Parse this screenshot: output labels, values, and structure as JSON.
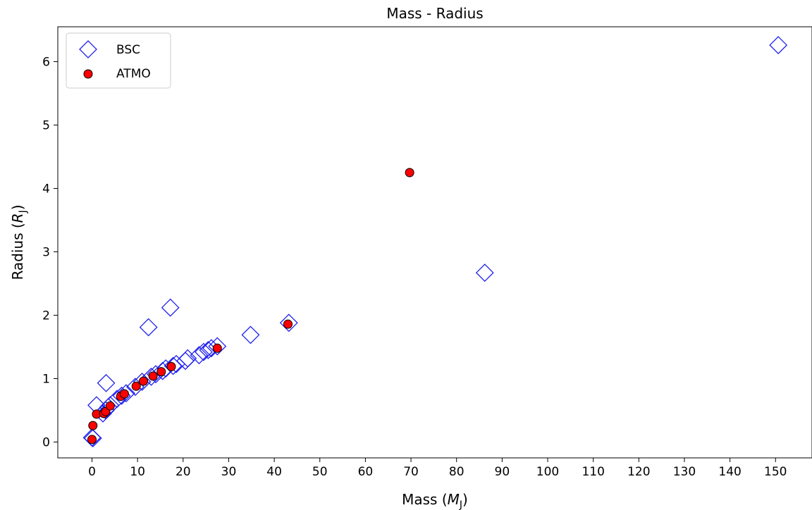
{
  "chart_data": {
    "type": "scatter",
    "title": "Mass - Radius",
    "xlabel": {
      "prefix": "Mass (",
      "symbol": "M",
      "sub": "J",
      "suffix": ")"
    },
    "ylabel": {
      "prefix": "Radius (",
      "symbol": "R",
      "sub": "J",
      "suffix": ")"
    },
    "xlim": [
      -7.5,
      158.0
    ],
    "ylim": [
      -0.25,
      6.55
    ],
    "xticks": [
      0,
      10,
      20,
      30,
      40,
      50,
      60,
      70,
      80,
      90,
      100,
      110,
      120,
      130,
      140,
      150
    ],
    "yticks": [
      0,
      1,
      2,
      3,
      4,
      5,
      6
    ],
    "grid": false,
    "legend_position": "top-left",
    "series": [
      {
        "name": "BSC",
        "marker": "diamond-open",
        "color": "#1f1fef",
        "points": [
          [
            0.0,
            0.07
          ],
          [
            0.2,
            0.06
          ],
          [
            1.0,
            0.58
          ],
          [
            2.4,
            0.45
          ],
          [
            3.0,
            0.5
          ],
          [
            3.1,
            0.93
          ],
          [
            3.6,
            0.55
          ],
          [
            4.0,
            0.58
          ],
          [
            5.5,
            0.68
          ],
          [
            6.5,
            0.73
          ],
          [
            7.5,
            0.77
          ],
          [
            9.5,
            0.87
          ],
          [
            11.0,
            0.95
          ],
          [
            12.4,
            1.81
          ],
          [
            13.0,
            1.03
          ],
          [
            14.0,
            1.07
          ],
          [
            15.5,
            1.12
          ],
          [
            16.2,
            1.16
          ],
          [
            17.2,
            2.12
          ],
          [
            17.8,
            1.2
          ],
          [
            18.5,
            1.23
          ],
          [
            20.5,
            1.28
          ],
          [
            21.0,
            1.32
          ],
          [
            23.5,
            1.37
          ],
          [
            24.5,
            1.42
          ],
          [
            25.5,
            1.45
          ],
          [
            26.2,
            1.48
          ],
          [
            27.5,
            1.51
          ],
          [
            34.8,
            1.69
          ],
          [
            43.2,
            1.88
          ],
          [
            86.2,
            2.67
          ],
          [
            150.6,
            6.26
          ]
        ]
      },
      {
        "name": "ATMO",
        "marker": "circle",
        "color": "#ff0000",
        "points": [
          [
            0.0,
            0.04
          ],
          [
            0.2,
            0.26
          ],
          [
            1.0,
            0.44
          ],
          [
            2.6,
            0.45
          ],
          [
            3.0,
            0.48
          ],
          [
            4.0,
            0.57
          ],
          [
            6.3,
            0.72
          ],
          [
            7.1,
            0.76
          ],
          [
            9.7,
            0.88
          ],
          [
            11.3,
            0.96
          ],
          [
            13.4,
            1.04
          ],
          [
            15.2,
            1.11
          ],
          [
            17.4,
            1.19
          ],
          [
            27.5,
            1.48
          ],
          [
            43.0,
            1.86
          ],
          [
            69.7,
            4.25
          ]
        ]
      }
    ]
  }
}
